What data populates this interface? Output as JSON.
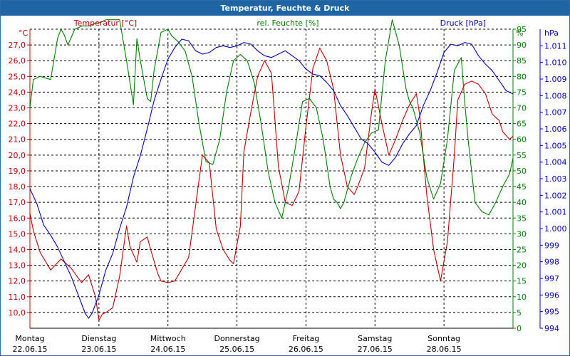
{
  "window": {
    "title": "Temperatur, Feuchte & Druck"
  },
  "colors": {
    "temperature": "#c00000",
    "humidity": "#008000",
    "pressure": "#0000c0",
    "grid": "#000000",
    "title_bg": "#1f65a4"
  },
  "chart_data": {
    "type": "line",
    "title": "Temperatur, Feuchte & Druck",
    "grid": true,
    "days": [
      {
        "name": "Montag",
        "date": "22.06.15"
      },
      {
        "name": "Dienstag",
        "date": "23.06.15"
      },
      {
        "name": "Mittwoch",
        "date": "24.06.15"
      },
      {
        "name": "Donnerstag",
        "date": "25.06.15"
      },
      {
        "name": "Freitag",
        "date": "26.06.15"
      },
      {
        "name": "Samstag",
        "date": "27.06.15"
      },
      {
        "name": "Sonntag",
        "date": "28.06.15"
      }
    ],
    "xlim": [
      0,
      7
    ],
    "axes": {
      "temperature": {
        "label": "Temperatur [°C]",
        "unit": "°C",
        "ylim": [
          9.0,
          28.0
        ],
        "ticks": [
          "27,0",
          "26,0",
          "25,0",
          "24,0",
          "23,0",
          "22,0",
          "21,0",
          "20,0",
          "19,0",
          "18,0",
          "17,0",
          "16,0",
          "15,0",
          "14,0",
          "13,0",
          "12,0",
          "11,0",
          "10,0"
        ]
      },
      "humidity": {
        "label": "rel. Feuchte [%]",
        "unit": "%",
        "ylim": [
          0,
          95
        ],
        "ticks": [
          "95",
          "90",
          "85",
          "80",
          "75",
          "70",
          "65",
          "60",
          "55",
          "50",
          "45",
          "40",
          "35",
          "30",
          "25",
          "20",
          "15",
          "10",
          "5",
          "0"
        ]
      },
      "pressure": {
        "label": "Druck [hPa]",
        "unit": "hPa",
        "ylim": [
          994,
          1012
        ],
        "ticks": [
          "1.011",
          "1.010",
          "1.009",
          "1.008",
          "1.007",
          "1.006",
          "1.005",
          "1.004",
          "1.003",
          "1.002",
          "1.001",
          "1.000",
          "999",
          "998",
          "997",
          "996",
          "995",
          "994"
        ]
      }
    },
    "series": [
      {
        "name": "Temperatur [°C]",
        "axis": "temperature",
        "color": "#c00000",
        "x": [
          0.0,
          0.05,
          0.15,
          0.3,
          0.45,
          0.6,
          0.75,
          0.85,
          0.95,
          1.0,
          1.05,
          1.1,
          1.2,
          1.3,
          1.4,
          1.45,
          1.55,
          1.6,
          1.7,
          1.75,
          1.85,
          1.9,
          2.0,
          2.1,
          2.3,
          2.5,
          2.6,
          2.7,
          2.8,
          2.9,
          2.95,
          3.05,
          3.1,
          3.2,
          3.3,
          3.4,
          3.5,
          3.6,
          3.7,
          3.8,
          3.9,
          4.0,
          4.1,
          4.2,
          4.3,
          4.4,
          4.5,
          4.6,
          4.7,
          4.75,
          4.85,
          4.95,
          5.0,
          5.1,
          5.2,
          5.3,
          5.4,
          5.5,
          5.6,
          5.65,
          5.75,
          5.85,
          5.95,
          6.05,
          6.15,
          6.2,
          6.3,
          6.4,
          6.5,
          6.6,
          6.7,
          6.8,
          6.85,
          6.95,
          7.0
        ],
        "values": [
          16.3,
          15.2,
          13.8,
          12.7,
          13.4,
          12.8,
          11.9,
          12.4,
          11.0,
          9.5,
          9.9,
          10.0,
          10.3,
          12.3,
          15.5,
          14.2,
          13.2,
          14.5,
          14.8,
          14.0,
          12.5,
          12.0,
          11.9,
          12.0,
          13.5,
          20.0,
          19.5,
          15.3,
          14.0,
          13.3,
          13.1,
          15.5,
          20.2,
          22.7,
          25.0,
          26.0,
          25.2,
          19.3,
          17.0,
          16.8,
          17.7,
          21.8,
          25.5,
          26.8,
          26.0,
          24.2,
          20.0,
          18.0,
          17.5,
          18.0,
          19.2,
          22.7,
          24.2,
          22.0,
          20.0,
          21.0,
          22.2,
          23.2,
          23.9,
          22.5,
          17.5,
          14.0,
          12.0,
          14.5,
          20.0,
          23.5,
          24.5,
          24.7,
          24.5,
          23.9,
          22.6,
          22.2,
          21.5,
          21.0,
          21.2
        ]
      },
      {
        "name": "rel. Feuchte [%]",
        "axis": "humidity",
        "color": "#008000",
        "x": [
          0.0,
          0.05,
          0.15,
          0.3,
          0.4,
          0.45,
          0.5,
          0.55,
          0.65,
          0.75,
          0.85,
          0.95,
          1.0,
          1.1,
          1.2,
          1.3,
          1.4,
          1.5,
          1.55,
          1.6,
          1.7,
          1.75,
          1.8,
          1.9,
          2.0,
          2.05,
          2.15,
          2.25,
          2.35,
          2.45,
          2.55,
          2.65,
          2.75,
          2.85,
          2.95,
          3.05,
          3.15,
          3.25,
          3.35,
          3.45,
          3.55,
          3.65,
          3.75,
          3.85,
          3.95,
          4.05,
          4.15,
          4.25,
          4.35,
          4.4,
          4.45,
          4.5,
          4.55,
          4.65,
          4.75,
          4.85,
          4.95,
          5.05,
          5.15,
          5.25,
          5.35,
          5.45,
          5.5,
          5.55,
          5.65,
          5.75,
          5.85,
          5.95,
          6.05,
          6.15,
          6.25,
          6.3,
          6.35,
          6.45,
          6.55,
          6.65,
          6.75,
          6.85,
          6.95,
          7.0
        ],
        "values": [
          70,
          79,
          80,
          79,
          92,
          95,
          93,
          90,
          95,
          96,
          96,
          97,
          97,
          98,
          98,
          98,
          85,
          71,
          92,
          85,
          73,
          72,
          82,
          94,
          95,
          93,
          91,
          88,
          80,
          65,
          53,
          52,
          60,
          75,
          85,
          87,
          85,
          78,
          65,
          50,
          40,
          35,
          45,
          58,
          72,
          73,
          70,
          60,
          45,
          41,
          40,
          38,
          40,
          48,
          54,
          59,
          62,
          63,
          85,
          98,
          90,
          76,
          72,
          70,
          62,
          48,
          41,
          46,
          60,
          82,
          86,
          72,
          60,
          40,
          37,
          36,
          40,
          45,
          49,
          54
        ]
      },
      {
        "name": "Druck [hPa]",
        "axis": "pressure",
        "color": "#0000c0",
        "x": [
          0.0,
          0.1,
          0.2,
          0.3,
          0.4,
          0.5,
          0.6,
          0.7,
          0.8,
          0.85,
          0.9,
          1.0,
          1.1,
          1.2,
          1.3,
          1.4,
          1.5,
          1.6,
          1.7,
          1.8,
          1.9,
          2.0,
          2.1,
          2.2,
          2.3,
          2.4,
          2.5,
          2.6,
          2.7,
          2.8,
          2.9,
          3.0,
          3.1,
          3.2,
          3.3,
          3.4,
          3.5,
          3.6,
          3.7,
          3.8,
          3.9,
          4.0,
          4.1,
          4.2,
          4.3,
          4.4,
          4.5,
          4.6,
          4.7,
          4.8,
          4.9,
          5.0,
          5.1,
          5.2,
          5.3,
          5.4,
          5.5,
          5.6,
          5.7,
          5.8,
          5.9,
          6.0,
          6.1,
          6.2,
          6.3,
          6.4,
          6.5,
          6.6,
          6.7,
          6.8,
          6.9,
          7.0
        ],
        "values": [
          1002.4,
          1001.5,
          1000.2,
          999.6,
          998.9,
          998.0,
          997.1,
          996.0,
          994.9,
          994.6,
          994.9,
          996.0,
          997.5,
          998.5,
          1000.0,
          1001.3,
          1003.1,
          1004.4,
          1006.0,
          1007.7,
          1009.0,
          1010.2,
          1010.9,
          1011.4,
          1011.3,
          1010.7,
          1010.5,
          1010.6,
          1010.9,
          1011.0,
          1010.9,
          1011.0,
          1011.2,
          1011.1,
          1010.7,
          1010.4,
          1010.3,
          1010.5,
          1010.7,
          1010.4,
          1010.1,
          1009.6,
          1009.3,
          1009.2,
          1008.8,
          1008.3,
          1007.4,
          1006.8,
          1006.1,
          1005.4,
          1005.1,
          1004.6,
          1004.0,
          1003.8,
          1004.3,
          1005.1,
          1005.7,
          1006.2,
          1007.4,
          1008.3,
          1009.4,
          1010.6,
          1011.1,
          1011.0,
          1011.2,
          1011.1,
          1010.4,
          1009.9,
          1009.5,
          1008.9,
          1008.3,
          1008.1
        ]
      }
    ]
  }
}
